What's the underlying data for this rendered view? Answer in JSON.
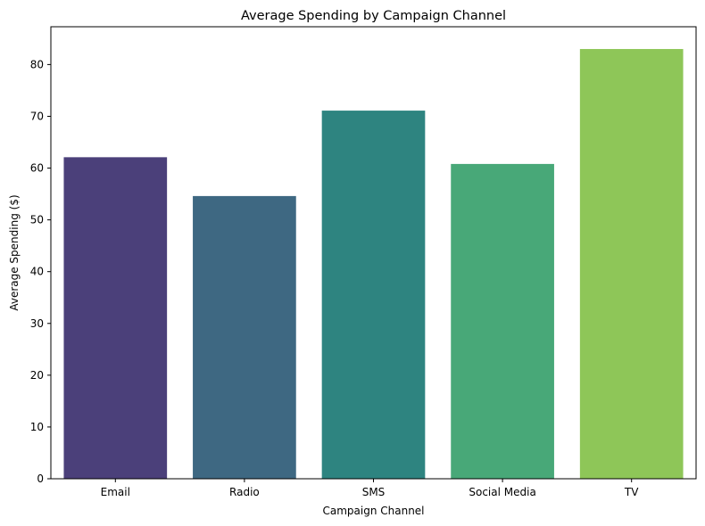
{
  "chart_data": {
    "type": "bar",
    "title": "Average Spending by Campaign Channel",
    "xlabel": "Campaign Channel",
    "ylabel": "Average Spending ($)",
    "categories": [
      "Email",
      "Radio",
      "SMS",
      "Social Media",
      "TV"
    ],
    "values": [
      62.1,
      54.6,
      71.1,
      60.8,
      83.0
    ],
    "colors": [
      "#4b407a",
      "#3e6882",
      "#2e8480",
      "#48a878",
      "#8ec658"
    ],
    "ylim": [
      0,
      87.3
    ],
    "yticks": [
      0,
      10,
      20,
      30,
      40,
      50,
      60,
      70,
      80
    ],
    "grid": false,
    "legend": false
  }
}
